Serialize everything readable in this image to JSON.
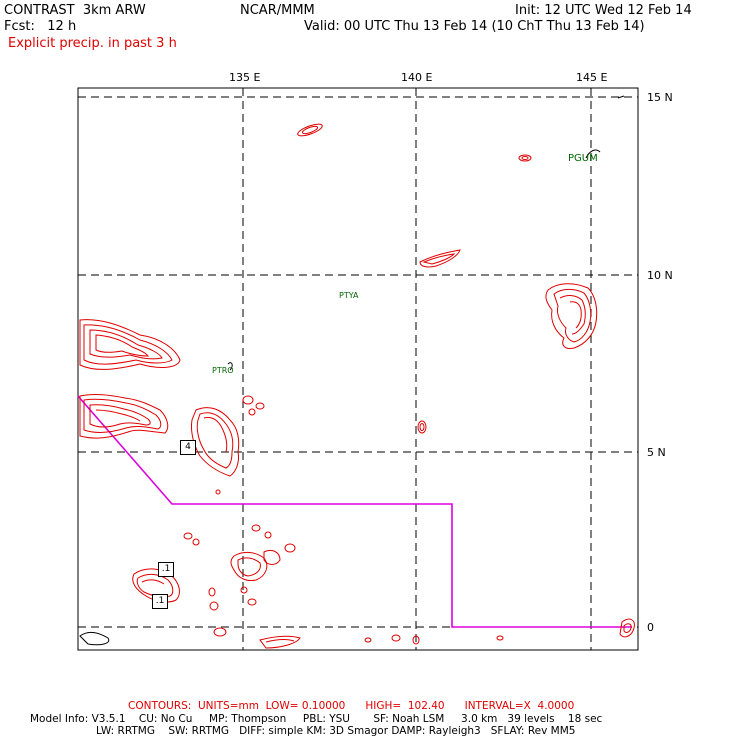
{
  "header": {
    "title_left": "CONTRAST  3km ARW",
    "title_center": "NCAR/MMM",
    "init": "Init: 12 UTC Wed 12 Feb 14",
    "fcst": "Fcst:   12 h",
    "valid": "Valid: 00 UTC Thu 13 Feb 14 (10 ChT Thu 13 Feb 14)",
    "field": "Explicit precip. in past 3 h"
  },
  "axes": {
    "lon_labels": [
      "135 E",
      "140 E",
      "145 E"
    ],
    "lat_labels": [
      "15 N",
      "10 N",
      "5 N",
      "0"
    ]
  },
  "stations": [
    "PGUM",
    "PTYA",
    "PTRO"
  ],
  "contour_labels": [
    "4",
    ".1",
    ".1"
  ],
  "footer": {
    "contours": "CONTOURS:  UNITS=mm  LOW= 0.10000      HIGH=  102.40      INTERVAL=X  4.0000",
    "model_line1": "Model Info: V3.5.1    CU: No Cu     MP: Thompson     PBL: YSU       SF: Noah LSM     3.0 km   39 levels    18 sec",
    "model_line2": "LW: RRTMG    SW: RRTMG   DIFF: simple KM: 3D Smagor DAMP: Rayleigh3   SFLAY: Rev MM5"
  },
  "colors": {
    "contour": "#e00000",
    "boundary": "#dd00dd",
    "station": "#006600",
    "header_red": "#e00000"
  }
}
